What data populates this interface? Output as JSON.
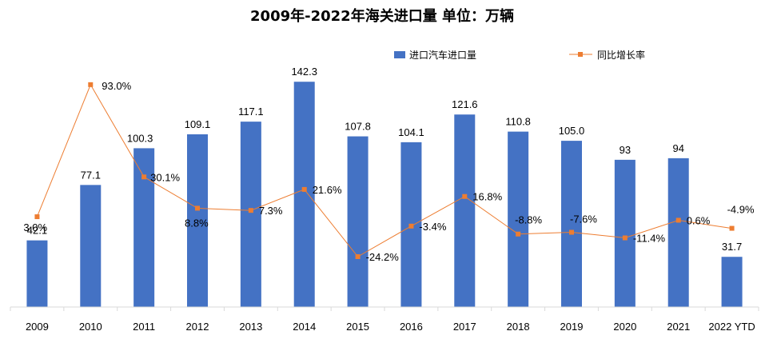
{
  "chart_data": {
    "type": "bar",
    "title": "2009年-2022年海关进口量   单位：万辆",
    "categories": [
      "2009",
      "2010",
      "2011",
      "2012",
      "2013",
      "2014",
      "2015",
      "2016",
      "2017",
      "2018",
      "2019",
      "2020",
      "2021",
      "2022 YTD"
    ],
    "xlabel": "",
    "ylabel": "",
    "ylim": [
      0,
      150
    ],
    "y2lim": [
      -40,
      100
    ],
    "grid": false,
    "legend_position": "top-right",
    "series": [
      {
        "name": "进口汽车进口量",
        "type": "bar",
        "color": "#4472C4",
        "values": [
          42.1,
          77.1,
          100.3,
          109.1,
          117.1,
          142.3,
          107.8,
          104.1,
          121.6,
          110.8,
          105.0,
          93,
          94,
          31.7
        ],
        "labels": [
          "42.1",
          "77.1",
          "100.3",
          "109.1",
          "117.1",
          "142.3",
          "107.8",
          "104.1",
          "121.6",
          "110.8",
          "105.0",
          "93",
          "94",
          "31.7"
        ]
      },
      {
        "name": "同比增长率",
        "type": "line",
        "axis": "secondary",
        "color": "#ED7D31",
        "values": [
          3.0,
          93.0,
          30.1,
          8.8,
          7.3,
          21.6,
          -24.2,
          -3.4,
          16.8,
          -8.8,
          -7.6,
          -11.4,
          0.6,
          -4.9
        ],
        "labels": [
          "3.0%",
          "93.0%",
          "30.1%",
          "8.8%",
          "7.3%",
          "21.6%",
          "-24.2%",
          "-3.4%",
          "16.8%",
          "-8.8%",
          "-7.6%",
          "-11.4%",
          "0.6%",
          "-4.9%"
        ]
      }
    ]
  }
}
